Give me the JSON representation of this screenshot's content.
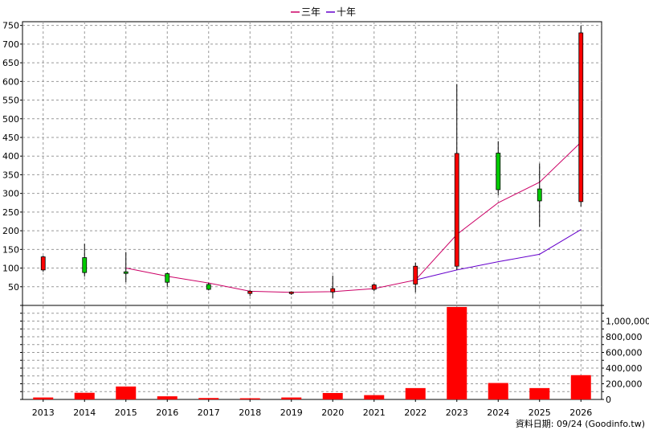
{
  "chart_data": {
    "type": "candlestick",
    "source_note": "資料日期: 09/24 (Goodinfo.tw)",
    "legend": [
      {
        "label": "三年",
        "color": "#cc0066"
      },
      {
        "label": "十年",
        "color": "#6600cc"
      }
    ],
    "categories": [
      "2013",
      "2014",
      "2015",
      "2016",
      "2017",
      "2018",
      "2019",
      "2020",
      "2021",
      "2022",
      "2023",
      "2024",
      "2025",
      "2026"
    ],
    "price_axis": {
      "min": 0,
      "max": 760,
      "ticks": [
        50,
        100,
        150,
        200,
        250,
        300,
        350,
        400,
        450,
        500,
        550,
        600,
        650,
        700,
        750
      ],
      "grid": true
    },
    "volume_axis": {
      "min": 0,
      "max": 1200000,
      "ticks": [
        0,
        200000,
        400000,
        600000,
        800000,
        1000000
      ],
      "tick_labels": [
        "0",
        "200,000",
        "400,000",
        "600,000",
        "800,000",
        "1,000,000"
      ],
      "grid": true
    },
    "candles": [
      {
        "year": "2013",
        "open": 95,
        "close": 130,
        "high": 133,
        "low": 90,
        "color": "#ff0000"
      },
      {
        "year": "2014",
        "open": 128,
        "close": 88,
        "high": 165,
        "low": 77,
        "color": "#00cc00"
      },
      {
        "year": "2015",
        "open": 90,
        "close": 90,
        "high": 143,
        "low": 62,
        "color": "#00cc00"
      },
      {
        "year": "2016",
        "open": 85,
        "close": 62,
        "high": 88,
        "low": 50,
        "color": "#00cc00"
      },
      {
        "year": "2017",
        "open": 56,
        "close": 43,
        "high": 60,
        "low": 40,
        "color": "#00cc00"
      },
      {
        "year": "2018",
        "open": 32,
        "close": 38,
        "high": 42,
        "low": 25,
        "color": "#ff0000"
      },
      {
        "year": "2019",
        "open": 32,
        "close": 36,
        "high": 38,
        "low": 28,
        "color": "#ff0000"
      },
      {
        "year": "2020",
        "open": 36,
        "close": 45,
        "high": 80,
        "low": 20,
        "color": "#ff0000"
      },
      {
        "year": "2021",
        "open": 43,
        "close": 55,
        "high": 58,
        "low": 38,
        "color": "#ff0000"
      },
      {
        "year": "2022",
        "open": 57,
        "close": 105,
        "high": 115,
        "low": 35,
        "color": "#ff0000"
      },
      {
        "year": "2023",
        "open": 105,
        "close": 407,
        "high": 593,
        "low": 95,
        "color": "#ff0000"
      },
      {
        "year": "2024",
        "open": 408,
        "close": 310,
        "high": 440,
        "low": 295,
        "color": "#00cc00"
      },
      {
        "year": "2025",
        "open": 312,
        "close": 280,
        "high": 380,
        "low": 210,
        "color": "#00cc00"
      },
      {
        "year": "2026",
        "open": 278,
        "close": 730,
        "high": 750,
        "low": 265,
        "color": "#ff0000"
      }
    ],
    "series": [
      {
        "name": "三年",
        "color": "#cc0066",
        "values": [
          null,
          null,
          100,
          78,
          60,
          38,
          35,
          37,
          45,
          68,
          190,
          275,
          330,
          437
        ]
      },
      {
        "name": "十年",
        "color": "#6600cc",
        "values": [
          null,
          null,
          null,
          null,
          null,
          null,
          null,
          null,
          null,
          68,
          95,
          117,
          137,
          203
        ]
      }
    ],
    "volume": {
      "color": "#ff0000",
      "values": [
        25000,
        85000,
        165000,
        40000,
        18000,
        15000,
        25000,
        82000,
        55000,
        145000,
        1180000,
        210000,
        145000,
        310000
      ]
    }
  }
}
